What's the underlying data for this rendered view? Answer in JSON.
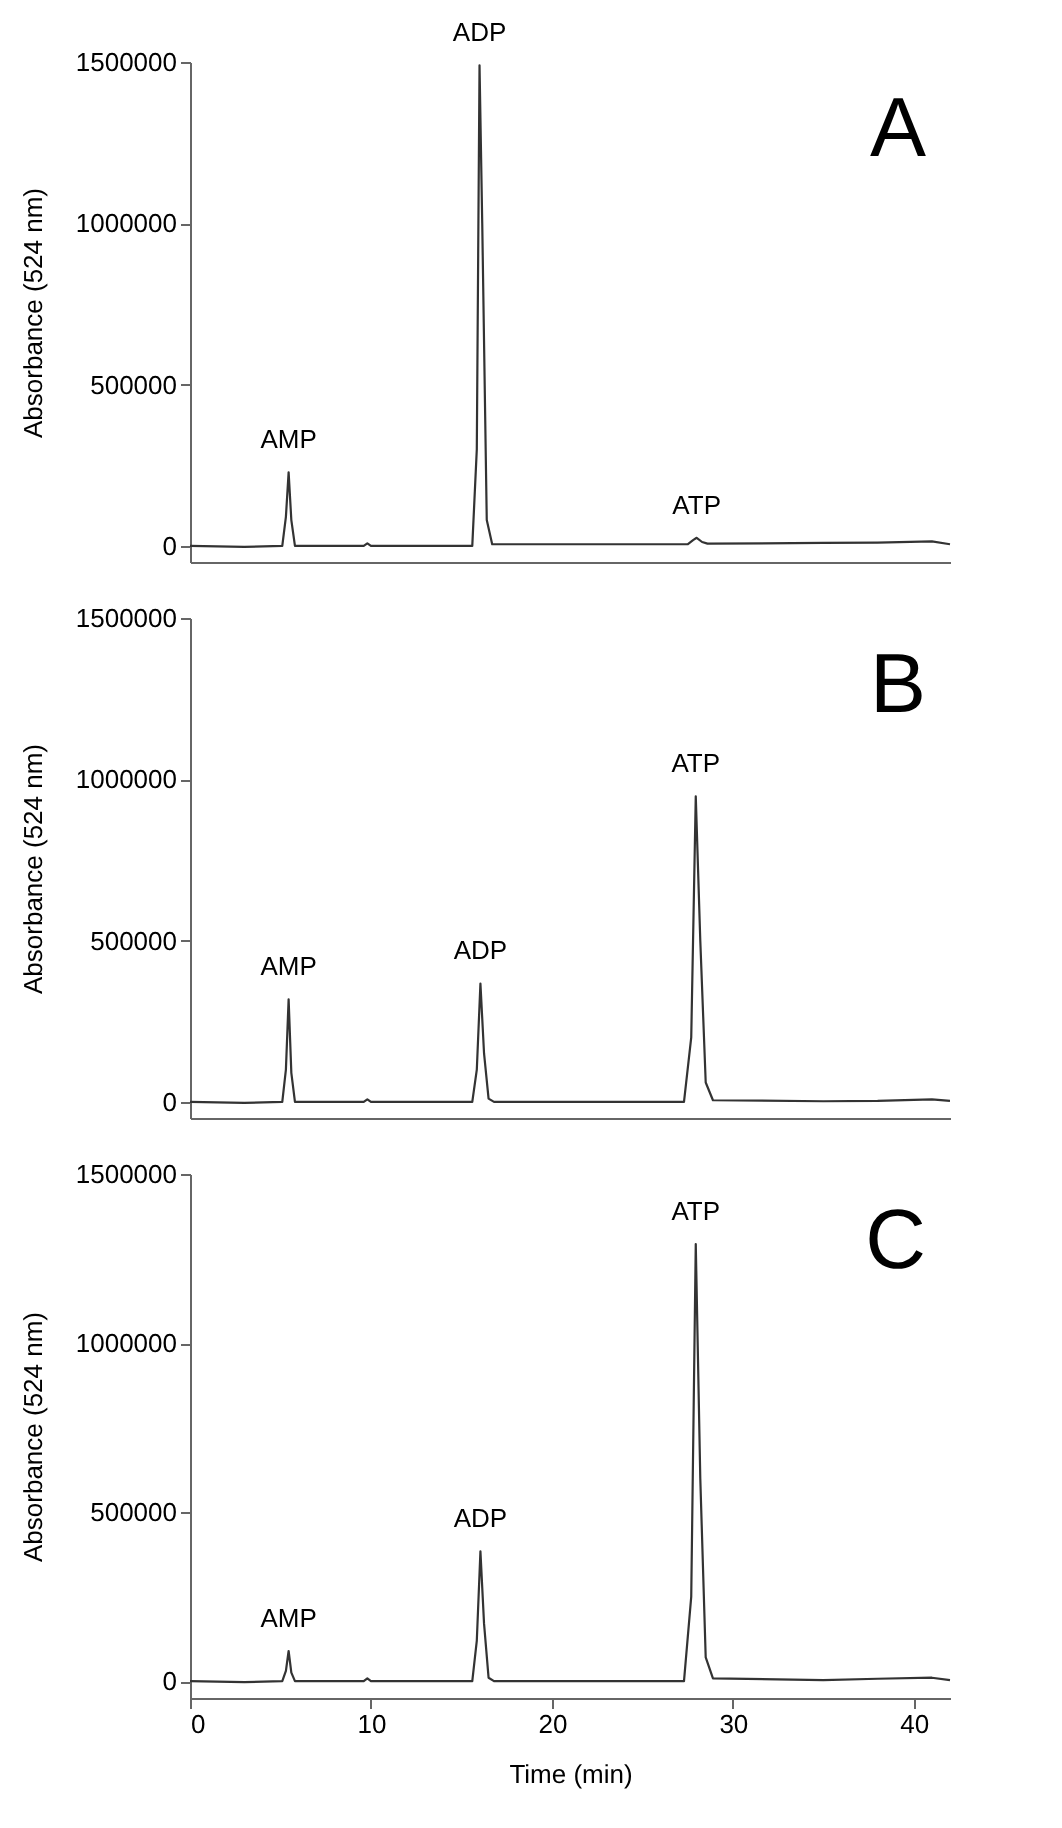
{
  "chart_data": [
    {
      "type": "line",
      "title": "A",
      "ylabel": "Absorbance (524 nm)",
      "xlim": [
        0,
        42
      ],
      "xticks": [
        0,
        10,
        20,
        30,
        40
      ],
      "ylim": [
        -50000,
        1500000
      ],
      "yticks": [
        0,
        500000,
        1000000,
        1500000
      ],
      "tick_labels": "y",
      "grid": false,
      "series": [
        {
          "color": "#333333",
          "x": [
            0,
            3,
            5.1,
            5.3,
            5.45,
            5.6,
            5.8,
            9.6,
            9.8,
            10,
            15.6,
            15.85,
            16.0,
            16.15,
            16.4,
            16.7,
            27.5,
            27.8,
            28.0,
            28.3,
            28.6,
            35,
            38,
            41,
            42
          ],
          "values": [
            0,
            -3000,
            0,
            90000,
            228000,
            80000,
            0,
            0,
            8000,
            0,
            0,
            300000,
            1490000,
            1000000,
            80000,
            5000,
            5000,
            18000,
            25000,
            12000,
            7000,
            9000,
            10000,
            14000,
            5000
          ]
        }
      ],
      "annotations": [
        {
          "text": "AMP",
          "x": 5.45,
          "y": 228000
        },
        {
          "text": "ADP",
          "x": 16.0,
          "y": 1490000
        },
        {
          "text": "ATP",
          "x": 28.0,
          "y": 25000
        }
      ]
    },
    {
      "type": "line",
      "title": "B",
      "ylabel": "Absorbance (524 nm)",
      "xlim": [
        0,
        42
      ],
      "xticks": [
        0,
        10,
        20,
        30,
        40
      ],
      "ylim": [
        -50000,
        1500000
      ],
      "yticks": [
        0,
        500000,
        1000000,
        1500000
      ],
      "tick_labels": "y",
      "grid": false,
      "series": [
        {
          "color": "#333333",
          "x": [
            0,
            3,
            5.1,
            5.3,
            5.45,
            5.6,
            5.8,
            9.6,
            9.8,
            10,
            15.6,
            15.85,
            16.05,
            16.25,
            16.5,
            16.8,
            27.3,
            27.7,
            27.95,
            28.2,
            28.5,
            28.9,
            35,
            38,
            41,
            42
          ],
          "values": [
            0,
            -3000,
            0,
            100000,
            318000,
            90000,
            0,
            0,
            8000,
            0,
            0,
            100000,
            367000,
            150000,
            10000,
            0,
            0,
            200000,
            947000,
            500000,
            60000,
            5000,
            2000,
            3000,
            8000,
            3000
          ]
        }
      ],
      "annotations": [
        {
          "text": "AMP",
          "x": 5.45,
          "y": 318000
        },
        {
          "text": "ADP",
          "x": 16.05,
          "y": 367000
        },
        {
          "text": "ATP",
          "x": 27.95,
          "y": 947000
        }
      ]
    },
    {
      "type": "line",
      "title": "C",
      "ylabel": "Absorbance (524 nm)",
      "xlabel": "Time (min)",
      "xlim": [
        0,
        42
      ],
      "xticks": [
        0,
        10,
        20,
        30,
        40
      ],
      "ylim": [
        -50000,
        1500000
      ],
      "yticks": [
        0,
        500000,
        1000000,
        1500000
      ],
      "grid": false,
      "series": [
        {
          "color": "#333333",
          "x": [
            0,
            3,
            5.1,
            5.3,
            5.45,
            5.6,
            5.8,
            9.6,
            9.8,
            10,
            15.6,
            15.85,
            16.05,
            16.25,
            16.5,
            16.8,
            27.3,
            27.7,
            27.95,
            28.2,
            28.5,
            28.9,
            35,
            38,
            41,
            42
          ],
          "values": [
            0,
            -3000,
            0,
            30000,
            89000,
            25000,
            0,
            0,
            8000,
            0,
            0,
            120000,
            384000,
            170000,
            10000,
            0,
            0,
            250000,
            1293000,
            600000,
            70000,
            8000,
            3000,
            7000,
            10000,
            3000
          ]
        }
      ],
      "annotations": [
        {
          "text": "AMP",
          "x": 5.45,
          "y": 89000
        },
        {
          "text": "ADP",
          "x": 16.05,
          "y": 384000
        },
        {
          "text": "ATP",
          "x": 27.95,
          "y": 1293000
        }
      ]
    }
  ]
}
